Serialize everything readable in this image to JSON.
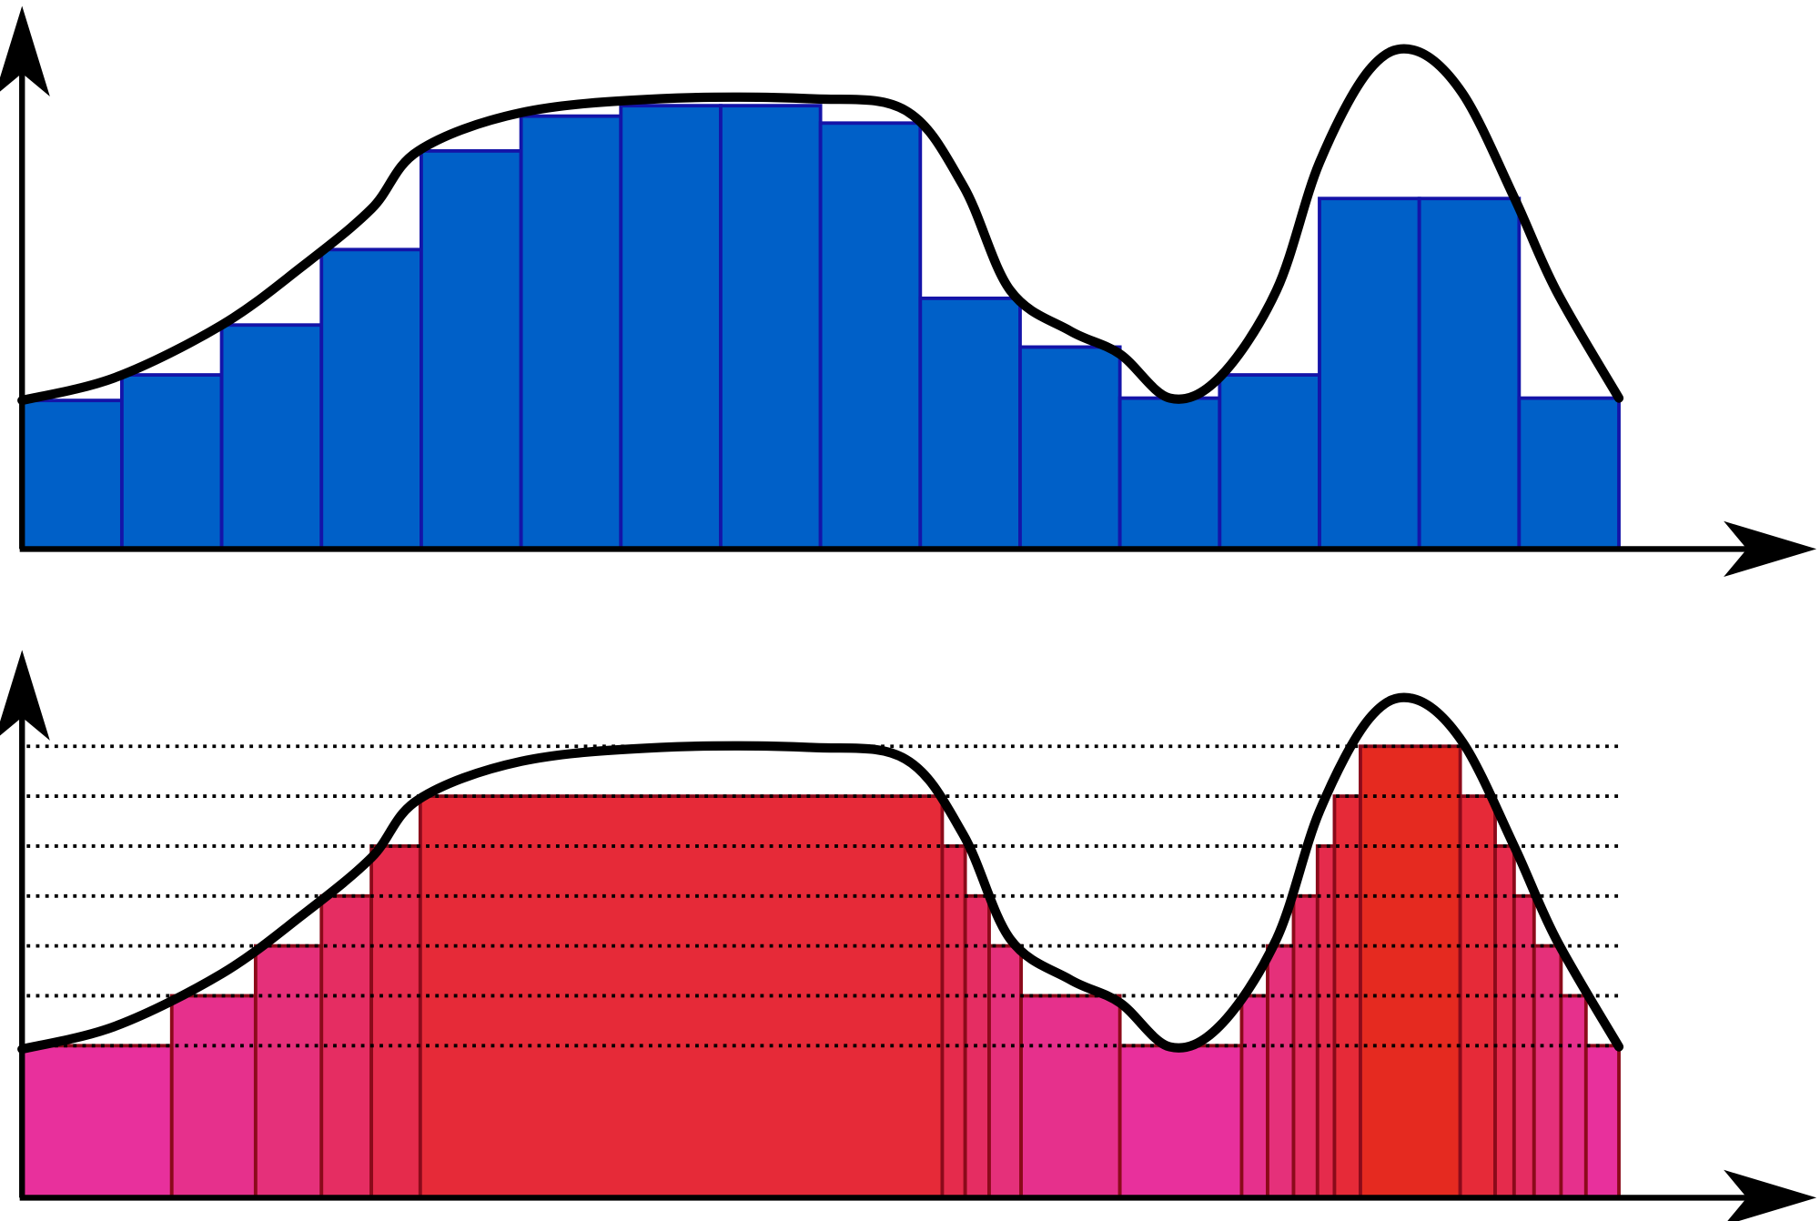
{
  "chart_data": [
    {
      "type": "histogram",
      "bins": [
        0,
        1,
        2,
        3,
        4,
        5,
        6,
        7,
        8,
        9,
        10,
        11,
        12,
        13,
        14,
        15,
        16
      ],
      "values": [
        128,
        150,
        193,
        258,
        343,
        373,
        382,
        382,
        367,
        216,
        174,
        130,
        150,
        302,
        302,
        130
      ],
      "color": "#0060c8",
      "edge_color": "#1414a8",
      "curve": {
        "x": [
          0,
          0.94,
          2.0,
          2.8,
          3.5,
          3.97,
          5.0,
          6.4,
          7.9,
          8.85,
          9.43,
          9.9,
          10.5,
          11.0,
          11.5,
          12.0,
          12.57,
          13.0,
          13.5,
          13.94,
          14.43,
          14.95,
          15.37,
          16
        ],
        "y": [
          128,
          148,
          193,
          243,
          293,
          343,
          376,
          388,
          388,
          378,
          313,
          223,
          188,
          168,
          130,
          148,
          223,
          333,
          413,
          430,
          393,
          303,
          223,
          130
        ]
      },
      "xlim": [
        0,
        17.98
      ],
      "ylim": [
        0,
        468
      ]
    },
    {
      "type": "histogram",
      "bins": [
        0,
        1.5,
        2.34,
        3.0,
        3.5,
        3.99,
        9.22,
        9.45,
        9.69,
        10.01,
        11.0,
        12.22,
        12.48,
        12.74,
        12.98,
        13.15,
        13.41,
        14.41,
        14.76,
        14.95,
        15.15,
        15.42,
        15.67,
        16
      ],
      "values": [
        131,
        174,
        217,
        260,
        303,
        346,
        303,
        260,
        217,
        174,
        131,
        174,
        217,
        260,
        303,
        346,
        389,
        346,
        303,
        260,
        217,
        174,
        131
      ],
      "colors": [
        "#e8309c",
        "#e6308c",
        "#e5307a",
        "#e52d62",
        "#e52b4c",
        "#e62a38",
        "#e52b4c",
        "#e52d62",
        "#e5307a",
        "#e6308c",
        "#e8309c",
        "#e6308c",
        "#e5307a",
        "#e52d62",
        "#e52b4c",
        "#e62a38",
        "#e52a20",
        "#e62a38",
        "#e52b4c",
        "#e52d62",
        "#e5307a",
        "#e6308c",
        "#e8309c"
      ],
      "edge_color": "#8b0a1a",
      "hlines": [
        389,
        346,
        303,
        260,
        217,
        174,
        131
      ],
      "curve": {
        "x": [
          0,
          0.94,
          2.0,
          2.8,
          3.5,
          3.97,
          5.0,
          6.4,
          7.9,
          8.85,
          9.43,
          9.9,
          10.5,
          11.0,
          11.5,
          12.0,
          12.57,
          13.0,
          13.5,
          13.94,
          14.43,
          14.95,
          15.37,
          16
        ],
        "y": [
          128,
          148,
          193,
          243,
          293,
          343,
          376,
          388,
          388,
          378,
          313,
          223,
          188,
          168,
          130,
          148,
          223,
          333,
          413,
          430,
          393,
          303,
          223,
          130
        ]
      },
      "xlim": [
        0,
        17.98
      ],
      "ylim": [
        0,
        472
      ]
    }
  ]
}
